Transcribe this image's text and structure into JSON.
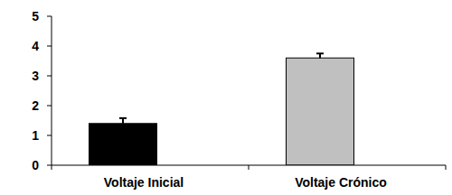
{
  "chart_data": {
    "type": "bar",
    "categories": [
      "Voltaje Inicial",
      "Voltaje Crónico"
    ],
    "values": [
      1.4,
      3.6
    ],
    "errors": [
      0.18,
      0.15
    ],
    "colors": [
      "#000000",
      "#c0c0c0"
    ],
    "ylim": [
      0,
      5
    ],
    "yticks": [
      0,
      1,
      2,
      3,
      4,
      5
    ],
    "grid": false
  }
}
